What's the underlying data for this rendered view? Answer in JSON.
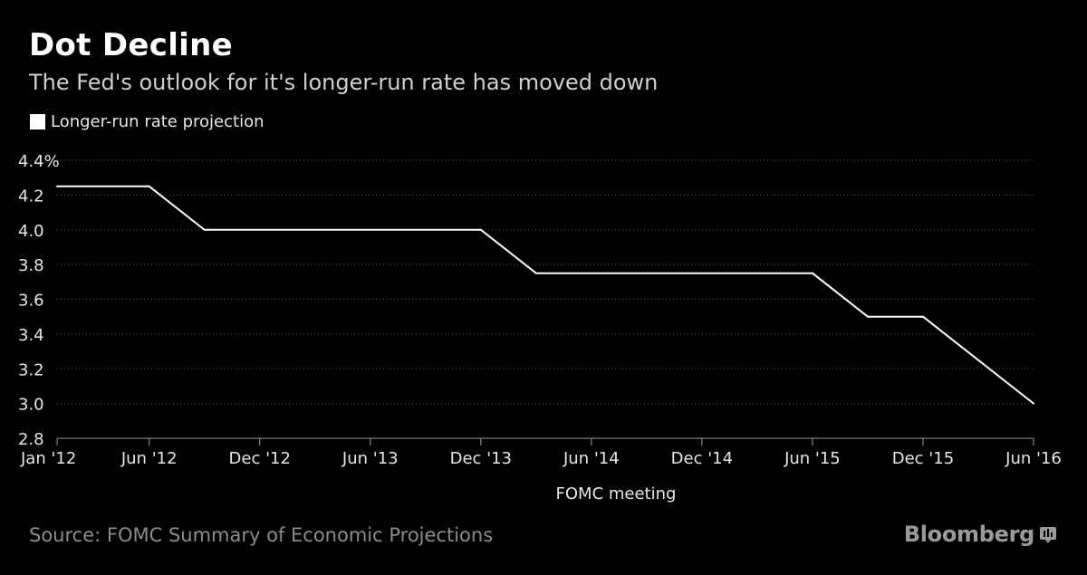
{
  "header": {
    "title": "Dot Decline",
    "subtitle": "The Fed's outlook for it's longer-run rate has moved down"
  },
  "legend": {
    "label": "Longer-run rate projection"
  },
  "footer": {
    "source": "Source: FOMC Summary of Economic Projections",
    "brand": "Bloomberg",
    "brand_icon": "bloomberg-logo-icon"
  },
  "colors": {
    "background": "#000000",
    "line": "#ffffff",
    "grid": "#555555",
    "muted": "#8c8c8c"
  },
  "chart_data": {
    "type": "line",
    "title": "Dot Decline",
    "subtitle": "The Fed's outlook for it's longer-run rate has moved down",
    "xlabel": "FOMC meeting",
    "ylabel": "",
    "ylim": [
      2.8,
      4.4
    ],
    "y_unit": "%",
    "yticks": [
      "4.4%",
      "4.2",
      "4.0",
      "3.8",
      "3.6",
      "3.4",
      "3.2",
      "3.0",
      "2.8"
    ],
    "y_tick_values": [
      4.4,
      4.2,
      4.0,
      3.8,
      3.6,
      3.4,
      3.2,
      3.0,
      2.8
    ],
    "xticks": [
      "Jan '12",
      "Jun '12",
      "Dec '12",
      "Jun '13",
      "Dec '13",
      "Jun '14",
      "Dec '14",
      "Jun '15",
      "Dec '15",
      "Jun '16"
    ],
    "x_tick_dates": [
      "2012-01",
      "2012-06",
      "2012-12",
      "2013-06",
      "2013-12",
      "2014-06",
      "2014-12",
      "2015-06",
      "2015-12",
      "2016-06"
    ],
    "grid": "horizontal-dotted",
    "legend_position": "top-left",
    "series": [
      {
        "name": "Longer-run rate projection",
        "x": [
          "2012-01",
          "2012-06",
          "2012-09",
          "2013-12",
          "2014-03",
          "2015-06",
          "2015-09",
          "2015-12",
          "2016-06"
        ],
        "values": [
          4.25,
          4.25,
          4.0,
          4.0,
          3.75,
          3.75,
          3.5,
          3.5,
          3.0
        ]
      }
    ]
  }
}
